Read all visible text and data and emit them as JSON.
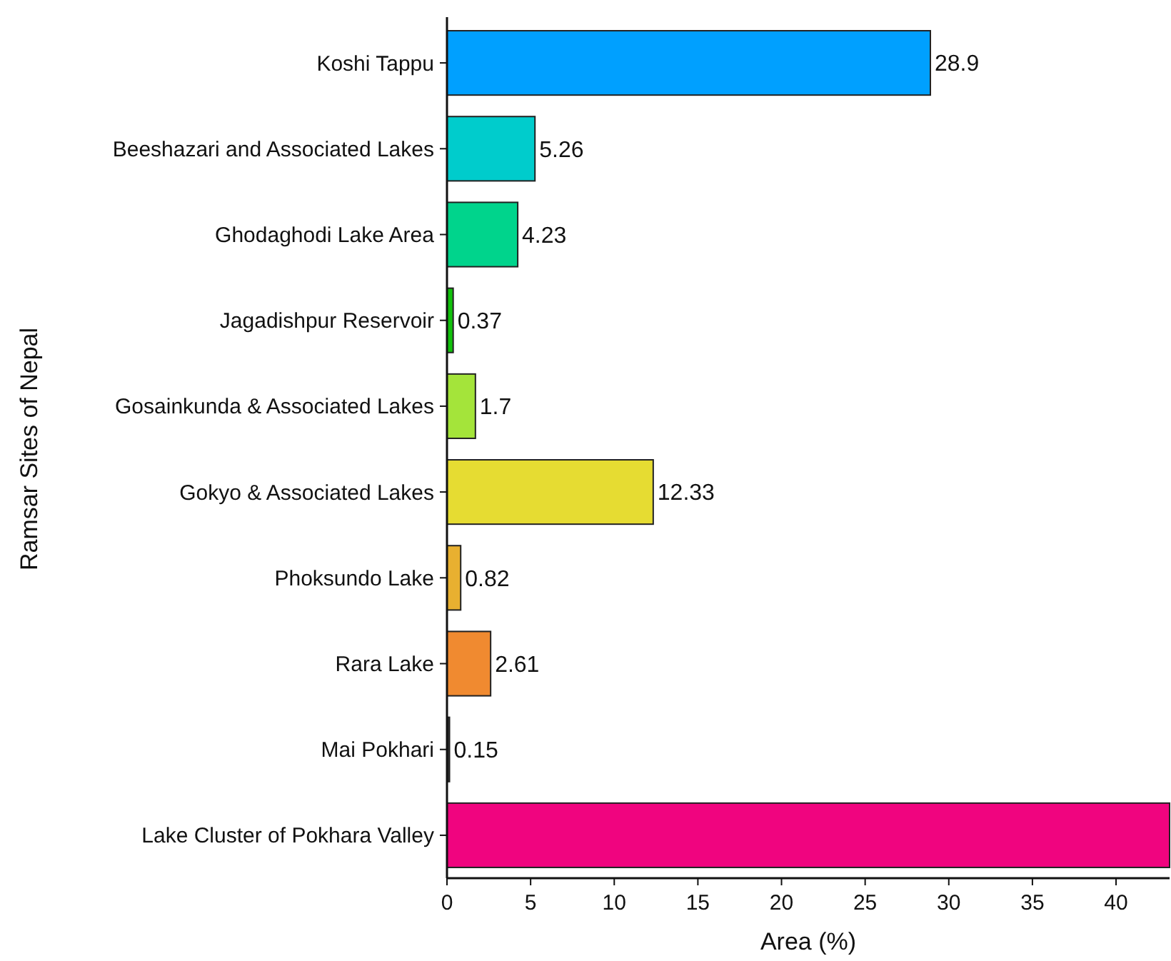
{
  "chart_data": {
    "type": "bar",
    "orientation": "horizontal",
    "xlabel": "Area (%)",
    "ylabel": "Ramsar Sites of Nepal",
    "categories": [
      "Koshi Tappu",
      "Beeshazari and Associated Lakes",
      "Ghodaghodi Lake Area",
      "Jagadishpur Reservoir",
      "Gosainkunda & Associated Lakes",
      "Gokyo & Associated Lakes",
      "Phoksundo Lake",
      "Rara Lake",
      "Mai Pokhari",
      "Lake Cluster of Pokhara Valley"
    ],
    "values": [
      28.9,
      5.26,
      4.23,
      0.37,
      1.7,
      12.33,
      0.82,
      2.61,
      0.15,
      43.2
    ],
    "colors": [
      "#00a0ff",
      "#00cccc",
      "#00d48c",
      "#12c20c",
      "#a4e43a",
      "#e6dc32",
      "#e8b030",
      "#f08a30",
      "#333333",
      "#f0047f"
    ],
    "value_labels": [
      "28.9",
      "5.26",
      "4.23",
      "0.37",
      "1.7",
      "12.33",
      "0.82",
      "2.61",
      "0.15",
      null
    ],
    "xlim": [
      0,
      43.2
    ],
    "xticks": [
      0,
      5,
      10,
      15,
      20,
      25,
      30,
      35,
      40
    ]
  }
}
